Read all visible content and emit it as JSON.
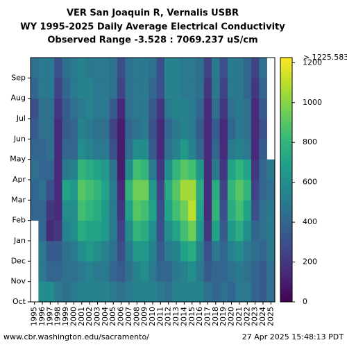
{
  "chart_data": {
    "type": "heatmap",
    "title": [
      "VER San Joaquin R, Vernalis USBR",
      "WY 1995-2025 Daily Average Electrical Conductivity",
      "Observed Range -3.528 : 7069.237 uS/cm"
    ],
    "categories": [
      "1995",
      "1996",
      "1997",
      "1998",
      "1999",
      "2000",
      "2001",
      "2002",
      "2003",
      "2004",
      "2005",
      "2006",
      "2007",
      "2008",
      "2009",
      "2010",
      "2011",
      "2012",
      "2013",
      "2014",
      "2015",
      "2016",
      "2017",
      "2018",
      "2019",
      "2020",
      "2021",
      "2022",
      "2023",
      "2024",
      "2025"
    ],
    "ylim": [
      0,
      12
    ],
    "yticks": [
      {
        "value": 0,
        "label": "Oct"
      },
      {
        "value": 1,
        "label": "Nov"
      },
      {
        "value": 2,
        "label": "Dec"
      },
      {
        "value": 3,
        "label": "Jan"
      },
      {
        "value": 4,
        "label": "Feb"
      },
      {
        "value": 5,
        "label": "Mar"
      },
      {
        "value": 6,
        "label": "Apr"
      },
      {
        "value": 7,
        "label": "May"
      },
      {
        "value": 8,
        "label": "Jun"
      },
      {
        "value": 9,
        "label": "Jul"
      },
      {
        "value": 10,
        "label": "Aug"
      },
      {
        "value": 11,
        "label": "Sep"
      }
    ],
    "values": [
      [
        null,
        null,
        null,
        null,
        400,
        400,
        450,
        400,
        350,
        300,
        400,
        450
      ],
      [
        600,
        500,
        500,
        400,
        400,
        450,
        400,
        400,
        450,
        450,
        500,
        500
      ],
      [
        600,
        400,
        350,
        150,
        200,
        300,
        400,
        450,
        450,
        450,
        500,
        500
      ],
      [
        500,
        400,
        350,
        200,
        150,
        150,
        150,
        150,
        150,
        200,
        250,
        300
      ],
      [
        450,
        450,
        450,
        550,
        600,
        700,
        500,
        400,
        350,
        350,
        400,
        450
      ],
      [
        500,
        450,
        500,
        600,
        600,
        650,
        550,
        400,
        400,
        450,
        500,
        500
      ],
      [
        550,
        500,
        600,
        750,
        850,
        900,
        800,
        600,
        550,
        500,
        550,
        550
      ],
      [
        550,
        550,
        650,
        700,
        800,
        850,
        750,
        550,
        500,
        550,
        550,
        500
      ],
      [
        550,
        500,
        600,
        700,
        750,
        800,
        700,
        500,
        450,
        500,
        500,
        500
      ],
      [
        550,
        500,
        550,
        650,
        650,
        700,
        650,
        500,
        450,
        500,
        500,
        500
      ],
      [
        500,
        400,
        450,
        500,
        500,
        500,
        450,
        300,
        250,
        350,
        450,
        450
      ],
      [
        450,
        350,
        300,
        250,
        200,
        150,
        100,
        100,
        100,
        150,
        250,
        300
      ],
      [
        500,
        450,
        500,
        600,
        700,
        800,
        600,
        450,
        400,
        450,
        450,
        450
      ],
      [
        550,
        550,
        650,
        800,
        900,
        950,
        850,
        600,
        450,
        500,
        500,
        500
      ],
      [
        550,
        600,
        650,
        750,
        850,
        950,
        800,
        600,
        500,
        500,
        500,
        500
      ],
      [
        550,
        500,
        550,
        600,
        700,
        650,
        500,
        350,
        300,
        350,
        400,
        450
      ],
      [
        500,
        400,
        350,
        300,
        300,
        250,
        200,
        150,
        150,
        200,
        300,
        300
      ],
      [
        450,
        400,
        500,
        600,
        700,
        750,
        600,
        450,
        400,
        500,
        550,
        550
      ],
      [
        550,
        500,
        550,
        700,
        850,
        900,
        800,
        550,
        500,
        550,
        550,
        550
      ],
      [
        550,
        550,
        700,
        850,
        950,
        1050,
        900,
        650,
        550,
        550,
        500,
        500
      ],
      [
        550,
        600,
        750,
        950,
        1100,
        1050,
        850,
        550,
        500,
        500,
        500,
        500
      ],
      [
        550,
        500,
        550,
        650,
        700,
        750,
        650,
        400,
        350,
        400,
        450,
        450
      ],
      [
        450,
        350,
        300,
        200,
        150,
        150,
        150,
        150,
        150,
        150,
        200,
        250
      ],
      [
        400,
        400,
        500,
        700,
        800,
        750,
        500,
        400,
        350,
        450,
        500,
        500
      ],
      [
        450,
        400,
        400,
        350,
        300,
        250,
        200,
        150,
        150,
        200,
        250,
        300
      ],
      [
        400,
        450,
        550,
        650,
        750,
        800,
        700,
        500,
        400,
        450,
        500,
        500
      ],
      [
        500,
        500,
        600,
        750,
        850,
        900,
        800,
        550,
        500,
        500,
        500,
        500
      ],
      [
        500,
        450,
        500,
        600,
        700,
        800,
        700,
        500,
        450,
        450,
        400,
        400
      ],
      [
        400,
        400,
        450,
        400,
        300,
        250,
        200,
        150,
        150,
        150,
        200,
        250
      ],
      [
        350,
        350,
        400,
        450,
        450,
        400,
        400,
        350,
        300,
        350,
        400,
        450
      ],
      [
        450,
        450,
        500,
        500,
        500,
        450,
        500,
        null,
        null,
        null,
        null,
        null
      ]
    ],
    "clim": [
      0,
      1225.583
    ],
    "clim_label": "> 1225.583",
    "cticks": [
      0,
      200,
      400,
      600,
      800,
      1000,
      1200
    ],
    "colors": [
      "#440154",
      "#482878",
      "#3e4989",
      "#31688e",
      "#26828e",
      "#1f9e89",
      "#35b779",
      "#6ece58",
      "#b5de2b",
      "#fde725"
    ],
    "source": "www.cbr.washington.edu/sacramento/",
    "timestamp": "27 Apr 2025 15:48:13 PDT"
  }
}
